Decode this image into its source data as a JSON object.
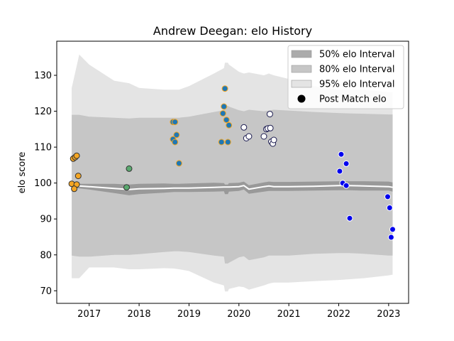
{
  "chart_data": {
    "type": "scatter",
    "title": "Andrew Deegan: elo History",
    "xlabel": "",
    "ylabel": "elo score",
    "xlim": [
      2016.35,
      2023.4
    ],
    "ylim": [
      66.5,
      139.5
    ],
    "xticks": [
      2017,
      2018,
      2019,
      2020,
      2021,
      2022,
      2023
    ],
    "xtick_labels": [
      "2017",
      "2018",
      "2019",
      "2020",
      "2021",
      "2022",
      "2023"
    ],
    "yticks": [
      70,
      80,
      90,
      100,
      110,
      120,
      130
    ],
    "ytick_labels": [
      "70",
      "80",
      "90",
      "100",
      "110",
      "120",
      "130"
    ],
    "grid": false,
    "legend_position": "top-right",
    "legend": [
      {
        "label": "50% elo Interval",
        "color": "#ababab"
      },
      {
        "label": "80% elo Interval",
        "color": "#c6c6c6"
      },
      {
        "label": "95% elo Interval",
        "color": "#e4e4e4"
      },
      {
        "label": "Post Match elo",
        "color": "#000000"
      }
    ],
    "bands": {
      "x": [
        2016.65,
        2016.8,
        2017.0,
        2017.5,
        2017.8,
        2018.0,
        2018.5,
        2018.7,
        2018.8,
        2019.0,
        2019.5,
        2019.7,
        2019.72,
        2019.78,
        2019.8,
        2020.0,
        2020.1,
        2020.2,
        2020.5,
        2020.6,
        2020.7,
        2021.0,
        2021.5,
        2022.0,
        2022.2,
        2022.5,
        2023.0,
        2023.08
      ],
      "median": [
        99.3,
        99.2,
        99.0,
        98.5,
        98.2,
        98.4,
        98.5,
        98.6,
        98.6,
        98.6,
        98.8,
        98.9,
        98.9,
        98.9,
        98.9,
        99.0,
        99.3,
        98.3,
        99.0,
        99.2,
        99.0,
        99.0,
        99.1,
        99.3,
        99.3,
        99.2,
        99.0,
        98.8
      ],
      "lower_50": [
        98.7,
        98.5,
        98.2,
        97.2,
        96.6,
        96.9,
        97.3,
        97.5,
        97.5,
        97.5,
        97.6,
        97.7,
        96.9,
        96.9,
        97.6,
        97.8,
        98.2,
        97.0,
        97.6,
        97.8,
        97.8,
        97.8,
        97.9,
        98.0,
        98.0,
        97.9,
        97.9,
        97.6
      ],
      "upper_50": [
        99.9,
        99.8,
        99.8,
        99.8,
        99.6,
        99.8,
        99.9,
        99.8,
        99.8,
        99.9,
        100.1,
        100.0,
        99.6,
        99.6,
        100.0,
        100.1,
        100.4,
        99.4,
        100.2,
        100.4,
        100.3,
        100.3,
        100.4,
        100.5,
        100.5,
        100.5,
        100.4,
        100.2
      ],
      "lower_80": [
        79.8,
        79.5,
        79.5,
        80.0,
        80.0,
        80.2,
        80.8,
        81.0,
        81.0,
        80.8,
        79.8,
        79.5,
        77.6,
        77.6,
        77.8,
        79.3,
        79.6,
        78.5,
        79.3,
        79.8,
        79.8,
        79.8,
        80.3,
        80.5,
        80.5,
        80.3,
        79.8,
        79.8
      ],
      "upper_80": [
        119.0,
        119.0,
        118.5,
        118.2,
        118.0,
        118.2,
        118.2,
        118.2,
        118.2,
        118.5,
        119.8,
        120.3,
        121.5,
        121.5,
        121.3,
        120.3,
        120.0,
        120.4,
        120.0,
        120.2,
        120.4,
        120.2,
        119.8,
        119.5,
        119.4,
        119.3,
        119.1,
        119.1
      ],
      "lower_95": [
        73.5,
        73.5,
        76.5,
        76.5,
        76.0,
        76.0,
        76.3,
        76.2,
        76.0,
        75.5,
        72.3,
        71.5,
        69.8,
        69.8,
        70.5,
        71.2,
        71.0,
        70.3,
        71.5,
        72.0,
        72.3,
        72.3,
        72.7,
        73.0,
        73.2,
        73.5,
        74.3,
        74.5
      ],
      "upper_95": [
        126.5,
        135.8,
        133.0,
        128.5,
        127.8,
        126.5,
        126.0,
        126.0,
        126.0,
        127.0,
        130.5,
        132.0,
        133.5,
        133.5,
        133.0,
        131.0,
        130.5,
        130.8,
        130.0,
        130.5,
        130.0,
        129.0,
        127.0,
        126.0,
        126.0,
        126.0,
        125.3,
        125.3
      ]
    },
    "series": [
      {
        "color": "#f5a623",
        "edge": "#333333",
        "points": [
          [
            2016.68,
            106.8
          ],
          [
            2016.72,
            107.2
          ],
          [
            2016.75,
            107.6
          ],
          [
            2016.65,
            99.8
          ],
          [
            2016.75,
            99.6
          ],
          [
            2016.7,
            98.4
          ],
          [
            2016.78,
            102.0
          ]
        ]
      },
      {
        "color": "#5aa96f",
        "edge": "#333333",
        "points": [
          [
            2017.75,
            98.8
          ],
          [
            2017.8,
            104.0
          ]
        ]
      },
      {
        "color": "#1f77b4",
        "edge": "#f5a623",
        "points": [
          [
            2018.68,
            117.0
          ],
          [
            2018.72,
            117.0
          ],
          [
            2018.75,
            113.4
          ],
          [
            2018.68,
            112.2
          ],
          [
            2018.72,
            111.4
          ],
          [
            2018.8,
            105.5
          ]
        ]
      },
      {
        "color": "#1f77b4",
        "edge": "#f5a623",
        "points": [
          [
            2019.72,
            126.3
          ],
          [
            2019.7,
            121.3
          ],
          [
            2019.68,
            119.4
          ],
          [
            2019.75,
            117.6
          ],
          [
            2019.8,
            116.1
          ],
          [
            2019.65,
            111.4
          ],
          [
            2019.78,
            111.4
          ]
        ]
      },
      {
        "color": "#ffffff",
        "edge": "#1a1a4e",
        "points": [
          [
            2020.1,
            115.5
          ],
          [
            2020.15,
            112.5
          ],
          [
            2020.2,
            113.0
          ],
          [
            2020.5,
            113.0
          ],
          [
            2020.55,
            115.0
          ],
          [
            2020.58,
            115.2
          ],
          [
            2020.62,
            119.2
          ],
          [
            2020.63,
            115.3
          ],
          [
            2020.65,
            111.5
          ],
          [
            2020.68,
            111.0
          ],
          [
            2020.7,
            112.0
          ]
        ]
      },
      {
        "color": "#0000ee",
        "edge": "#ffffff",
        "points": [
          [
            2022.05,
            108.0
          ],
          [
            2022.15,
            105.4
          ],
          [
            2022.02,
            103.3
          ],
          [
            2022.08,
            100.0
          ],
          [
            2022.15,
            99.3
          ],
          [
            2022.22,
            90.2
          ],
          [
            2022.98,
            96.2
          ],
          [
            2023.02,
            93.1
          ],
          [
            2023.08,
            87.1
          ],
          [
            2023.05,
            84.9
          ]
        ]
      }
    ]
  }
}
